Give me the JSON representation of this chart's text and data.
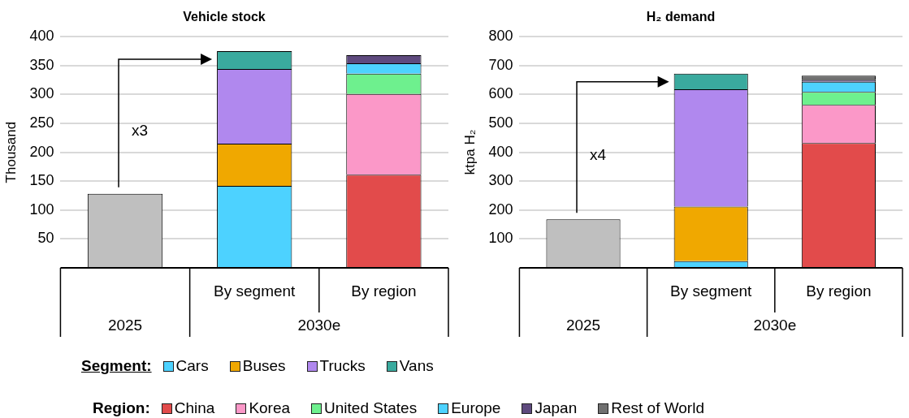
{
  "chart_data": [
    {
      "type": "bar",
      "title": "Vehicle stock",
      "ylabel": "Thousand",
      "stacked": true,
      "categories": [
        null,
        "By segment",
        "By region"
      ],
      "ylim": [
        0,
        400
      ],
      "yticks": [
        50,
        100,
        150,
        200,
        250,
        300,
        350,
        400
      ],
      "grid": "y",
      "legend": "bottom",
      "legend_title": "Segment:",
      "annotations": [
        "x3",
        "2025",
        "2030e"
      ],
      "series": [
        {
          "color": "#bfbfbf",
          "values": [
            128,
            null,
            null
          ]
        },
        {
          "name": "Cars",
          "color": "#4dd2ff",
          "values": [
            null,
            142,
            null
          ]
        },
        {
          "name": "Buses",
          "color": "#f0a800",
          "values": [
            null,
            73,
            null
          ]
        },
        {
          "name": "Trucks",
          "color": "#b088ee",
          "values": [
            null,
            129,
            null
          ]
        },
        {
          "name": "Vans",
          "color": "#3aaa9e",
          "values": [
            null,
            31,
            null
          ]
        },
        {
          "color": "#e24b4b",
          "values": [
            null,
            null,
            161
          ]
        },
        {
          "color": "#fb98c8",
          "values": [
            null,
            null,
            140
          ]
        },
        {
          "color": "#6ef08e",
          "values": [
            null,
            null,
            35
          ]
        },
        {
          "color": "#4dd2ff",
          "values": [
            null,
            null,
            18
          ]
        },
        {
          "color": "#5e4a7e",
          "values": [
            null,
            null,
            14
          ]
        }
      ]
    },
    {
      "type": "bar",
      "title": "H₂ demand",
      "ylabel": "ktpa H₂",
      "stacked": true,
      "categories": [
        null,
        "By segment",
        "By region"
      ],
      "ylim": [
        0,
        800
      ],
      "yticks": [
        100,
        200,
        300,
        400,
        500,
        600,
        700,
        800
      ],
      "grid": "y",
      "legend": "bottom",
      "legend_title": "Region:",
      "annotations": [
        "x4",
        "2025",
        "2030e"
      ],
      "series": [
        {
          "color": "#bfbfbf",
          "values": [
            168,
            null,
            null
          ]
        },
        {
          "color": "#4dd2ff",
          "values": [
            null,
            23,
            null
          ]
        },
        {
          "color": "#f0a800",
          "values": [
            null,
            189,
            null
          ]
        },
        {
          "color": "#b088ee",
          "values": [
            null,
            406,
            null
          ]
        },
        {
          "color": "#3aaa9e",
          "values": [
            null,
            54,
            null
          ]
        },
        {
          "name": "China",
          "color": "#e24b4b",
          "values": [
            null,
            null,
            432
          ]
        },
        {
          "name": "Korea",
          "color": "#fb98c8",
          "values": [
            null,
            null,
            132
          ]
        },
        {
          "name": "United States",
          "color": "#6ef08e",
          "values": [
            null,
            null,
            45
          ]
        },
        {
          "name": "Europe",
          "color": "#4dd2ff",
          "values": [
            null,
            null,
            35
          ]
        },
        {
          "name": "Japan",
          "color": "#5e4a7e",
          "values": [
            null,
            null,
            7
          ]
        },
        {
          "name": "Rest of World",
          "color": "#707070",
          "values": [
            null,
            null,
            14
          ]
        }
      ]
    }
  ]
}
